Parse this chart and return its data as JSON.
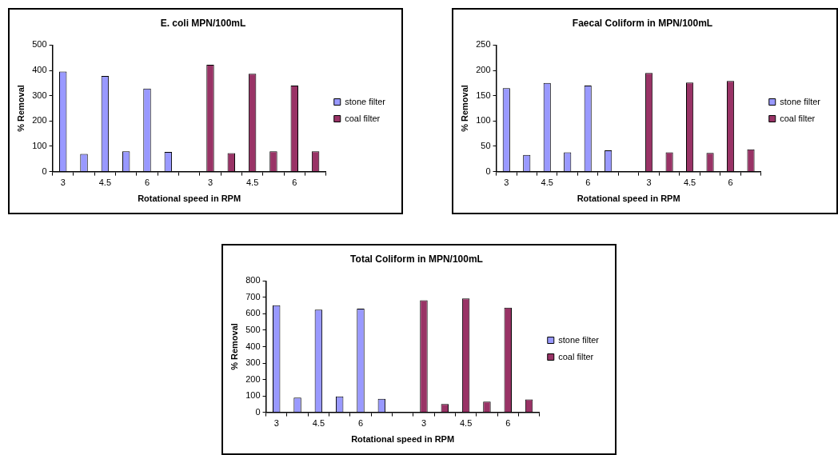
{
  "chart_data": [
    {
      "type": "bar",
      "title": "E. coli MPN/100mL",
      "xlabel": "Rotational speed in RPM",
      "ylabel": "% Removal",
      "categories": [
        "3",
        null,
        "4.5",
        null,
        "6",
        null,
        null,
        "3",
        null,
        "4.5",
        null,
        "6",
        null
      ],
      "series": [
        {
          "name": "stone filter",
          "color": "#9999ff",
          "values": [
            395,
            70,
            378,
            80,
            328,
            78,
            null,
            null,
            null,
            null,
            null,
            null,
            null
          ]
        },
        {
          "name": "coal filter",
          "color": "#993366",
          "values": [
            null,
            null,
            null,
            null,
            null,
            null,
            null,
            422,
            73,
            387,
            80,
            340,
            80
          ]
        }
      ],
      "ylim": [
        0,
        500
      ],
      "yticks": [
        0,
        100,
        200,
        300,
        400,
        500
      ],
      "grid": false,
      "legend": "right"
    },
    {
      "type": "bar",
      "title": "Faecal Coliform in MPN/100mL",
      "xlabel": "Rotational speed in RPM",
      "ylabel": "% Removal",
      "categories": [
        "3",
        null,
        "4.5",
        null,
        "6",
        null,
        null,
        "3",
        null,
        "4.5",
        null,
        "6",
        null
      ],
      "series": [
        {
          "name": "stone filter",
          "color": "#9999ff",
          "values": [
            165,
            33,
            175,
            38,
            170,
            42,
            null,
            null,
            null,
            null,
            null,
            null,
            null
          ]
        },
        {
          "name": "coal filter",
          "color": "#993366",
          "values": [
            null,
            null,
            null,
            null,
            null,
            null,
            null,
            195,
            38,
            176,
            37,
            179,
            44
          ]
        }
      ],
      "ylim": [
        0,
        250
      ],
      "yticks": [
        0,
        50,
        100,
        150,
        200,
        250
      ],
      "grid": false,
      "legend": "right"
    },
    {
      "type": "bar",
      "title": "Total Coliform in MPN/100mL",
      "xlabel": "Rotational speed in RPM",
      "ylabel": "% Removal",
      "categories": [
        "3",
        null,
        "4.5",
        null,
        "6",
        null,
        null,
        "3",
        null,
        "4.5",
        null,
        "6",
        null
      ],
      "series": [
        {
          "name": "stone filter",
          "color": "#9999ff",
          "values": [
            652,
            90,
            625,
            97,
            632,
            82,
            null,
            null,
            null,
            null,
            null,
            null,
            null
          ]
        },
        {
          "name": "coal filter",
          "color": "#993366",
          "values": [
            null,
            null,
            null,
            null,
            null,
            null,
            null,
            683,
            50,
            693,
            65,
            638,
            78
          ]
        }
      ],
      "ylim": [
        0,
        800
      ],
      "yticks": [
        0,
        100,
        200,
        300,
        400,
        500,
        600,
        700,
        800
      ],
      "grid": false,
      "legend": "right"
    }
  ]
}
